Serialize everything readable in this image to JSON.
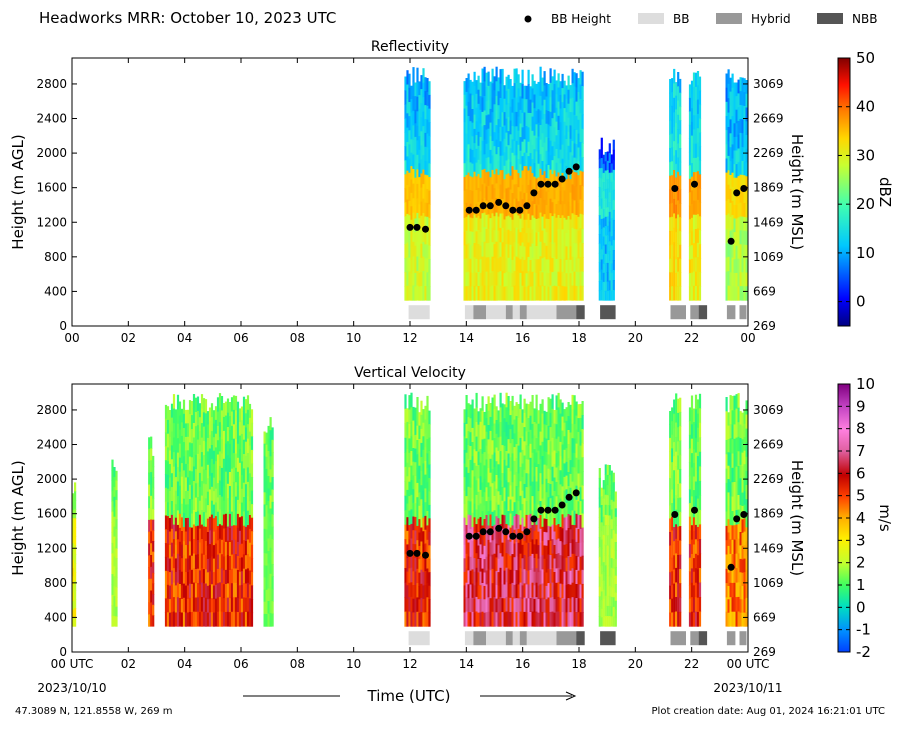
{
  "figure": {
    "title": "Headworks MRR:  October 10, 2023 UTC",
    "footer_left": "47.3089 N, 121.8558 W, 269 m",
    "footer_right": "Plot creation date: Aug 01, 2024 16:21:01 UTC",
    "xlabel": "Time (UTC)",
    "x_start_date": "2023/10/10",
    "x_end_date": "2023/10/11"
  },
  "legend": [
    {
      "label": "BB Height",
      "kind": "dot",
      "color": "#000000"
    },
    {
      "label": "BB",
      "kind": "box",
      "color": "#dddddd"
    },
    {
      "label": "Hybrid",
      "kind": "box",
      "color": "#999999"
    },
    {
      "label": "NBB",
      "kind": "box",
      "color": "#555555"
    }
  ],
  "chart_data": [
    {
      "type": "heatmap",
      "title": "Reflectivity",
      "ylabel": "Height (m AGL)",
      "ylabel_right": "Height (m MSL)",
      "colorbar_label": "dBZ",
      "colorbar_ticks": [
        "0",
        "10",
        "20",
        "30",
        "40",
        "50"
      ],
      "colorbar_range": [
        -5,
        50
      ],
      "x_tick_labels": [
        "00",
        "02",
        "04",
        "06",
        "08",
        "10",
        "12",
        "14",
        "16",
        "18",
        "20",
        "22",
        "00"
      ],
      "y_tick_labels": [
        "0",
        "400",
        "800",
        "1200",
        "1600",
        "2000",
        "2400",
        "2800"
      ],
      "y_right_tick_labels": [
        "269",
        "669",
        "1069",
        "1469",
        "1869",
        "2269",
        "2669",
        "3069"
      ],
      "xlim": [
        0,
        24
      ],
      "ylim": [
        0,
        3100
      ],
      "echo_periods": [
        {
          "start": 11.8,
          "end": 12.7,
          "top": 3000,
          "peak": 30
        },
        {
          "start": 13.9,
          "end": 18.1,
          "top": 3000,
          "peak": 32
        },
        {
          "start": 18.7,
          "end": 19.2,
          "top": 2200,
          "peak": 12
        },
        {
          "start": 21.2,
          "end": 21.6,
          "top": 3000,
          "peak": 35
        },
        {
          "start": 21.9,
          "end": 22.3,
          "top": 3000,
          "peak": 33
        },
        {
          "start": 23.2,
          "end": 24.0,
          "top": 3000,
          "peak": 28
        }
      ],
      "bb_height": [
        {
          "x": 12.0,
          "y": 1140
        },
        {
          "x": 12.25,
          "y": 1140
        },
        {
          "x": 12.55,
          "y": 1120
        },
        {
          "x": 14.1,
          "y": 1340
        },
        {
          "x": 14.35,
          "y": 1340
        },
        {
          "x": 14.6,
          "y": 1390
        },
        {
          "x": 14.85,
          "y": 1390
        },
        {
          "x": 15.15,
          "y": 1430
        },
        {
          "x": 15.4,
          "y": 1390
        },
        {
          "x": 15.65,
          "y": 1340
        },
        {
          "x": 15.9,
          "y": 1340
        },
        {
          "x": 16.15,
          "y": 1390
        },
        {
          "x": 16.4,
          "y": 1540
        },
        {
          "x": 16.65,
          "y": 1640
        },
        {
          "x": 16.9,
          "y": 1640
        },
        {
          "x": 17.15,
          "y": 1640
        },
        {
          "x": 17.4,
          "y": 1700
        },
        {
          "x": 17.65,
          "y": 1790
        },
        {
          "x": 17.9,
          "y": 1840
        },
        {
          "x": 21.4,
          "y": 1590
        },
        {
          "x": 22.1,
          "y": 1640
        },
        {
          "x": 23.4,
          "y": 980
        },
        {
          "x": 23.6,
          "y": 1540
        },
        {
          "x": 23.85,
          "y": 1590
        }
      ],
      "bb_type": [
        {
          "start": 11.95,
          "end": 12.7,
          "type": "BB"
        },
        {
          "start": 13.95,
          "end": 14.25,
          "type": "BB"
        },
        {
          "start": 14.25,
          "end": 14.7,
          "type": "Hybrid"
        },
        {
          "start": 14.7,
          "end": 15.4,
          "type": "BB"
        },
        {
          "start": 15.4,
          "end": 15.65,
          "type": "Hybrid"
        },
        {
          "start": 15.65,
          "end": 15.9,
          "type": "BB"
        },
        {
          "start": 15.9,
          "end": 16.15,
          "type": "Hybrid"
        },
        {
          "start": 16.15,
          "end": 17.2,
          "type": "BB"
        },
        {
          "start": 17.2,
          "end": 17.9,
          "type": "Hybrid"
        },
        {
          "start": 17.9,
          "end": 18.2,
          "type": "NBB"
        },
        {
          "start": 18.75,
          "end": 19.3,
          "type": "NBB"
        },
        {
          "start": 21.25,
          "end": 21.8,
          "type": "Hybrid"
        },
        {
          "start": 21.95,
          "end": 22.25,
          "type": "Hybrid"
        },
        {
          "start": 22.25,
          "end": 22.55,
          "type": "NBB"
        },
        {
          "start": 23.25,
          "end": 23.55,
          "type": "Hybrid"
        },
        {
          "start": 23.7,
          "end": 23.95,
          "type": "Hybrid"
        }
      ]
    },
    {
      "type": "heatmap",
      "title": "Vertical Velocity",
      "ylabel": "Height (m AGL)",
      "ylabel_right": "Height (m MSL)",
      "colorbar_label": "m/s",
      "colorbar_ticks": [
        "-2",
        "-1",
        "0",
        "1",
        "2",
        "3",
        "4",
        "5",
        "6",
        "7",
        "8",
        "9",
        "10"
      ],
      "colorbar_range": [
        -2,
        10
      ],
      "x_tick_labels": [
        "00 UTC",
        "02",
        "04",
        "06",
        "08",
        "10",
        "12",
        "14",
        "16",
        "18",
        "20",
        "22",
        "00 UTC"
      ],
      "y_tick_labels": [
        "0",
        "400",
        "800",
        "1200",
        "1600",
        "2000",
        "2400",
        "2800"
      ],
      "y_right_tick_labels": [
        "269",
        "669",
        "1069",
        "1469",
        "1869",
        "2269",
        "2669",
        "3069"
      ],
      "xlim": [
        0,
        24
      ],
      "ylim": [
        0,
        3100
      ],
      "echo_periods": [
        {
          "start": 0.0,
          "end": 0.1,
          "top": 2000,
          "peak": 3
        },
        {
          "start": 1.4,
          "end": 1.6,
          "top": 2300,
          "peak": 2
        },
        {
          "start": 2.7,
          "end": 2.85,
          "top": 2550,
          "peak": 6
        },
        {
          "start": 3.3,
          "end": 6.4,
          "top": 3000,
          "peak": 6
        },
        {
          "start": 6.8,
          "end": 7.1,
          "top": 2750,
          "peak": 1.5
        },
        {
          "start": 11.8,
          "end": 12.7,
          "top": 3000,
          "peak": 6
        },
        {
          "start": 13.9,
          "end": 18.1,
          "top": 3000,
          "peak": 7
        },
        {
          "start": 18.7,
          "end": 19.3,
          "top": 2200,
          "peak": 2
        },
        {
          "start": 21.2,
          "end": 21.6,
          "top": 3000,
          "peak": 6
        },
        {
          "start": 21.9,
          "end": 22.3,
          "top": 3000,
          "peak": 6
        },
        {
          "start": 23.2,
          "end": 24.0,
          "top": 3000,
          "peak": 5
        }
      ],
      "bb_height": [
        {
          "x": 12.0,
          "y": 1140
        },
        {
          "x": 12.25,
          "y": 1140
        },
        {
          "x": 12.55,
          "y": 1120
        },
        {
          "x": 14.1,
          "y": 1340
        },
        {
          "x": 14.35,
          "y": 1340
        },
        {
          "x": 14.6,
          "y": 1390
        },
        {
          "x": 14.85,
          "y": 1390
        },
        {
          "x": 15.15,
          "y": 1430
        },
        {
          "x": 15.4,
          "y": 1390
        },
        {
          "x": 15.65,
          "y": 1340
        },
        {
          "x": 15.9,
          "y": 1340
        },
        {
          "x": 16.15,
          "y": 1390
        },
        {
          "x": 16.4,
          "y": 1540
        },
        {
          "x": 16.65,
          "y": 1640
        },
        {
          "x": 16.9,
          "y": 1640
        },
        {
          "x": 17.15,
          "y": 1640
        },
        {
          "x": 17.4,
          "y": 1700
        },
        {
          "x": 17.65,
          "y": 1790
        },
        {
          "x": 17.9,
          "y": 1840
        },
        {
          "x": 21.4,
          "y": 1590
        },
        {
          "x": 22.1,
          "y": 1640
        },
        {
          "x": 23.4,
          "y": 980
        },
        {
          "x": 23.6,
          "y": 1540
        },
        {
          "x": 23.85,
          "y": 1590
        }
      ],
      "bb_type": [
        {
          "start": 11.95,
          "end": 12.7,
          "type": "BB"
        },
        {
          "start": 13.95,
          "end": 14.25,
          "type": "BB"
        },
        {
          "start": 14.25,
          "end": 14.7,
          "type": "Hybrid"
        },
        {
          "start": 14.7,
          "end": 15.4,
          "type": "BB"
        },
        {
          "start": 15.4,
          "end": 15.65,
          "type": "Hybrid"
        },
        {
          "start": 15.65,
          "end": 15.9,
          "type": "BB"
        },
        {
          "start": 15.9,
          "end": 16.15,
          "type": "Hybrid"
        },
        {
          "start": 16.15,
          "end": 17.2,
          "type": "BB"
        },
        {
          "start": 17.2,
          "end": 17.9,
          "type": "Hybrid"
        },
        {
          "start": 17.9,
          "end": 18.2,
          "type": "NBB"
        },
        {
          "start": 18.75,
          "end": 19.3,
          "type": "NBB"
        },
        {
          "start": 21.25,
          "end": 21.8,
          "type": "Hybrid"
        },
        {
          "start": 21.95,
          "end": 22.25,
          "type": "Hybrid"
        },
        {
          "start": 22.25,
          "end": 22.55,
          "type": "NBB"
        },
        {
          "start": 23.25,
          "end": 23.55,
          "type": "Hybrid"
        },
        {
          "start": 23.7,
          "end": 23.95,
          "type": "Hybrid"
        }
      ]
    }
  ]
}
